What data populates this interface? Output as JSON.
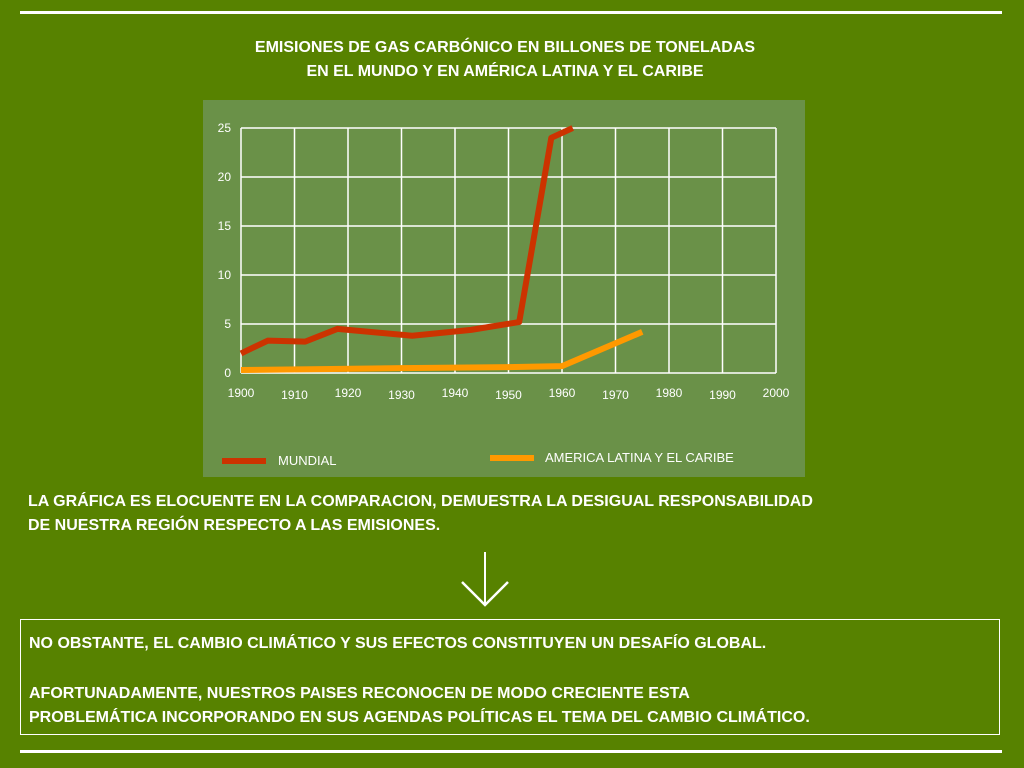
{
  "title": {
    "line1": "EMISIONES DE GAS CARBÓNICO EN BILLONES DE TONELADAS",
    "line2": "EN EL MUNDO Y EN AMÉRICA LATINA Y EL CARIBE"
  },
  "colors": {
    "background": "#578200",
    "panel": "#6a9148",
    "mundial": "#cc3300",
    "america_latina": "#ff9900"
  },
  "chart_data": {
    "type": "line",
    "x": [
      1900,
      1910,
      1920,
      1930,
      1940,
      1950,
      1960,
      1970,
      1980,
      1990,
      2000
    ],
    "x_tick_labels": [
      "1900",
      "1910",
      "1920",
      "1930",
      "1940",
      "1950",
      "1960",
      "1970",
      "1980",
      "1990",
      "2000"
    ],
    "y_ticks": [
      "0",
      "5",
      "10",
      "15",
      "20",
      "25"
    ],
    "ylim": [
      0,
      25
    ],
    "grid": true,
    "legend_position": "bottom",
    "series": [
      {
        "name": "MUNDIAL",
        "color": "#cc3300",
        "points": [
          [
            1900,
            2.0
          ],
          [
            1905,
            3.3
          ],
          [
            1912,
            3.2
          ],
          [
            1918,
            4.5
          ],
          [
            1932,
            3.8
          ],
          [
            1943,
            4.4
          ],
          [
            1952,
            5.2
          ],
          [
            1958,
            24.0
          ],
          [
            1962,
            25.0
          ]
        ]
      },
      {
        "name": "AMERICA LATINA Y EL CARIBE",
        "color": "#ff9900",
        "points": [
          [
            1900,
            0.3
          ],
          [
            1915,
            0.4
          ],
          [
            1930,
            0.5
          ],
          [
            1950,
            0.6
          ],
          [
            1960,
            0.7
          ],
          [
            1975,
            4.2
          ]
        ]
      }
    ]
  },
  "legend": {
    "mundial": "MUNDIAL",
    "america_latina": "AMERICA LATINA Y EL CARIBE"
  },
  "paragraph": {
    "line1": "LA GRÁFICA ES ELOCUENTE EN LA COMPARACION, DEMUESTRA LA DESIGUAL RESPONSABILIDAD",
    "line2": "DE NUESTRA REGIÓN RESPECTO A LAS EMISIONES."
  },
  "arrow_icon": "arrow-down-icon",
  "conclusion": {
    "line1": "NO OBSTANTE, EL CAMBIO CLIMÁTICO Y SUS EFECTOS CONSTITUYEN UN DESAFÍO GLOBAL.",
    "line2": "AFORTUNADAMENTE, NUESTROS PAISES RECONOCEN DE MODO CRECIENTE ESTA",
    "line3": "PROBLEMÁTICA INCORPORANDO EN SUS AGENDAS POLÍTICAS EL TEMA DEL CAMBIO CLIMÁTICO."
  }
}
